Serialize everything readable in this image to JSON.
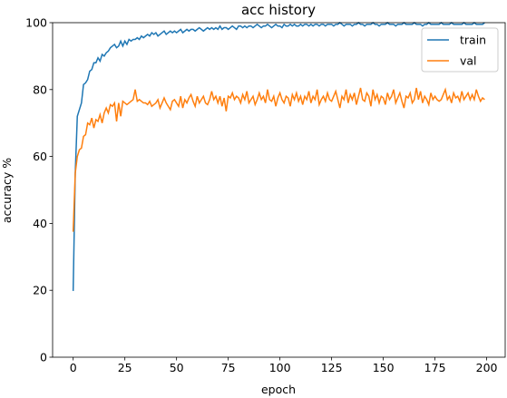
{
  "chart_data": {
    "type": "line",
    "title": "acc history",
    "x_label": "epoch",
    "y_label": "accuracy %",
    "x": [
      0,
      1,
      2,
      3,
      4,
      5,
      6,
      7,
      8,
      9,
      10,
      11,
      12,
      13,
      14,
      15,
      16,
      17,
      18,
      19,
      20,
      21,
      22,
      23,
      24,
      25,
      26,
      27,
      28,
      29,
      30,
      31,
      32,
      33,
      34,
      35,
      36,
      37,
      38,
      39,
      40,
      41,
      42,
      43,
      44,
      45,
      46,
      47,
      48,
      49,
      50,
      51,
      52,
      53,
      54,
      55,
      56,
      57,
      58,
      59,
      60,
      61,
      62,
      63,
      64,
      65,
      66,
      67,
      68,
      69,
      70,
      71,
      72,
      73,
      74,
      75,
      76,
      77,
      78,
      79,
      80,
      81,
      82,
      83,
      84,
      85,
      86,
      87,
      88,
      89,
      90,
      91,
      92,
      93,
      94,
      95,
      96,
      97,
      98,
      99,
      100,
      101,
      102,
      103,
      104,
      105,
      106,
      107,
      108,
      109,
      110,
      111,
      112,
      113,
      114,
      115,
      116,
      117,
      118,
      119,
      120,
      121,
      122,
      123,
      124,
      125,
      126,
      127,
      128,
      129,
      130,
      131,
      132,
      133,
      134,
      135,
      136,
      137,
      138,
      139,
      140,
      141,
      142,
      143,
      144,
      145,
      146,
      147,
      148,
      149,
      150,
      151,
      152,
      153,
      154,
      155,
      156,
      157,
      158,
      159,
      160,
      161,
      162,
      163,
      164,
      165,
      166,
      167,
      168,
      169,
      170,
      171,
      172,
      173,
      174,
      175,
      176,
      177,
      178,
      179,
      180,
      181,
      182,
      183,
      184,
      185,
      186,
      187,
      188,
      189,
      190,
      191,
      192,
      193,
      194,
      195,
      196,
      197,
      198,
      199
    ],
    "series": [
      {
        "name": "train",
        "color": "#1f77b4",
        "values": [
          19.8,
          55,
          72,
          74,
          76,
          81.5,
          82,
          83,
          85.5,
          86,
          88,
          88,
          89.5,
          88.5,
          90.5,
          90,
          91,
          91.5,
          92.5,
          93,
          93.5,
          92.5,
          93,
          94.5,
          93,
          94.5,
          93.5,
          95,
          94.5,
          95,
          95,
          95.5,
          95,
          96,
          95.5,
          96,
          96.5,
          96,
          97,
          96.5,
          97,
          96,
          96.5,
          97,
          97.5,
          96.5,
          97,
          97.5,
          97,
          97.5,
          97,
          97.5,
          98,
          97,
          97.5,
          98,
          97.5,
          98,
          98,
          97.5,
          98,
          98.5,
          98,
          97.5,
          98,
          98.5,
          98,
          98.5,
          98,
          98.5,
          98,
          99,
          98,
          98.5,
          98.5,
          98,
          98.5,
          99,
          98.5,
          98,
          99,
          99,
          98.5,
          99,
          98.5,
          99,
          99,
          98.5,
          99,
          99.5,
          99,
          98.5,
          99,
          99,
          99.5,
          99,
          98.5,
          99,
          99.5,
          99,
          99,
          98.5,
          99.5,
          99,
          99,
          99.5,
          99,
          99.5,
          99,
          99,
          99.5,
          99,
          99.5,
          99.5,
          99,
          99.5,
          99,
          99.5,
          99.5,
          99,
          99.5,
          99.5,
          99,
          99.5,
          99.5,
          99.5,
          99,
          99.5,
          99.5,
          100,
          99.5,
          99,
          99.5,
          99.5,
          99.5,
          99,
          99.5,
          99.5,
          100,
          99.5,
          99.5,
          99,
          99.5,
          99.5,
          99.5,
          100,
          99.5,
          99.5,
          99,
          99.5,
          99.5,
          99.5,
          100,
          99.5,
          99.5,
          99.5,
          99,
          99.5,
          99.5,
          99.5,
          100,
          99.5,
          99.5,
          99.5,
          99.5,
          100,
          99.5,
          99.5,
          99.5,
          99,
          99.5,
          99.5,
          100,
          99.5,
          99.5,
          99.5,
          99.5,
          99.5,
          100,
          99.5,
          99.5,
          99.5,
          99.5,
          100,
          99.5,
          99.5,
          99.5,
          99.5,
          99.5,
          100,
          99.5,
          99.5,
          99.5,
          99.5,
          100,
          99.5,
          99.5,
          99.5,
          99.5,
          100
        ]
      },
      {
        "name": "val",
        "color": "#ff7f0e",
        "values": [
          37.5,
          55,
          60,
          62,
          62.5,
          66,
          66.5,
          70,
          69.5,
          71.5,
          68.5,
          71,
          70.5,
          72.5,
          70,
          73,
          74.5,
          73,
          75.5,
          75,
          76,
          70.5,
          76,
          72,
          76.5,
          76,
          75.5,
          76,
          76.5,
          77,
          80,
          76.5,
          77,
          76.5,
          76,
          76,
          75.5,
          76.5,
          75,
          75.5,
          76,
          77,
          74.5,
          76,
          77.5,
          76,
          75,
          74,
          76.5,
          77,
          76,
          75,
          78,
          74.5,
          77,
          76,
          77.5,
          78.5,
          76.5,
          75,
          78,
          76,
          77,
          78,
          76,
          75.5,
          77,
          79.5,
          77,
          78,
          76,
          78,
          75,
          77.5,
          73.5,
          78,
          77.5,
          79,
          77,
          78,
          77.5,
          76,
          78.5,
          77,
          79.5,
          76,
          77,
          78,
          75.5,
          77,
          79,
          77,
          78,
          76,
          80,
          77,
          76.5,
          78,
          75,
          77.5,
          79,
          77,
          76,
          78,
          77.5,
          75,
          78.5,
          77,
          79,
          76.5,
          78,
          75.5,
          78,
          77,
          79.5,
          76,
          78,
          77,
          80,
          75.5,
          77,
          78,
          76.5,
          79,
          77,
          76.5,
          78,
          79.5,
          77,
          74.5,
          78,
          77,
          80,
          76,
          78.5,
          77,
          79,
          75.5,
          78,
          80.5,
          77,
          76.5,
          79,
          78,
          75,
          80,
          77,
          78.5,
          76,
          78,
          77.5,
          75.5,
          79,
          77,
          78,
          80,
          76,
          77.5,
          79,
          76.5,
          74.5,
          78,
          77.5,
          79,
          76,
          77,
          80.5,
          77,
          79.5,
          76,
          78,
          77,
          75.5,
          79,
          77,
          78,
          77,
          76.5,
          77,
          78.5,
          80,
          77,
          78,
          76,
          79,
          77.5,
          78,
          76.5,
          79.5,
          77,
          78,
          79,
          77,
          78.5,
          77,
          80,
          78,
          76.5,
          77.5,
          77
        ]
      }
    ],
    "xlim": [
      -9.95,
      208.95
    ],
    "ylim": [
      0,
      100
    ],
    "xticks": [
      0,
      25,
      50,
      75,
      100,
      125,
      150,
      175,
      200
    ],
    "yticks": [
      0,
      20,
      40,
      60,
      80,
      100
    ],
    "legend": "upper right"
  }
}
